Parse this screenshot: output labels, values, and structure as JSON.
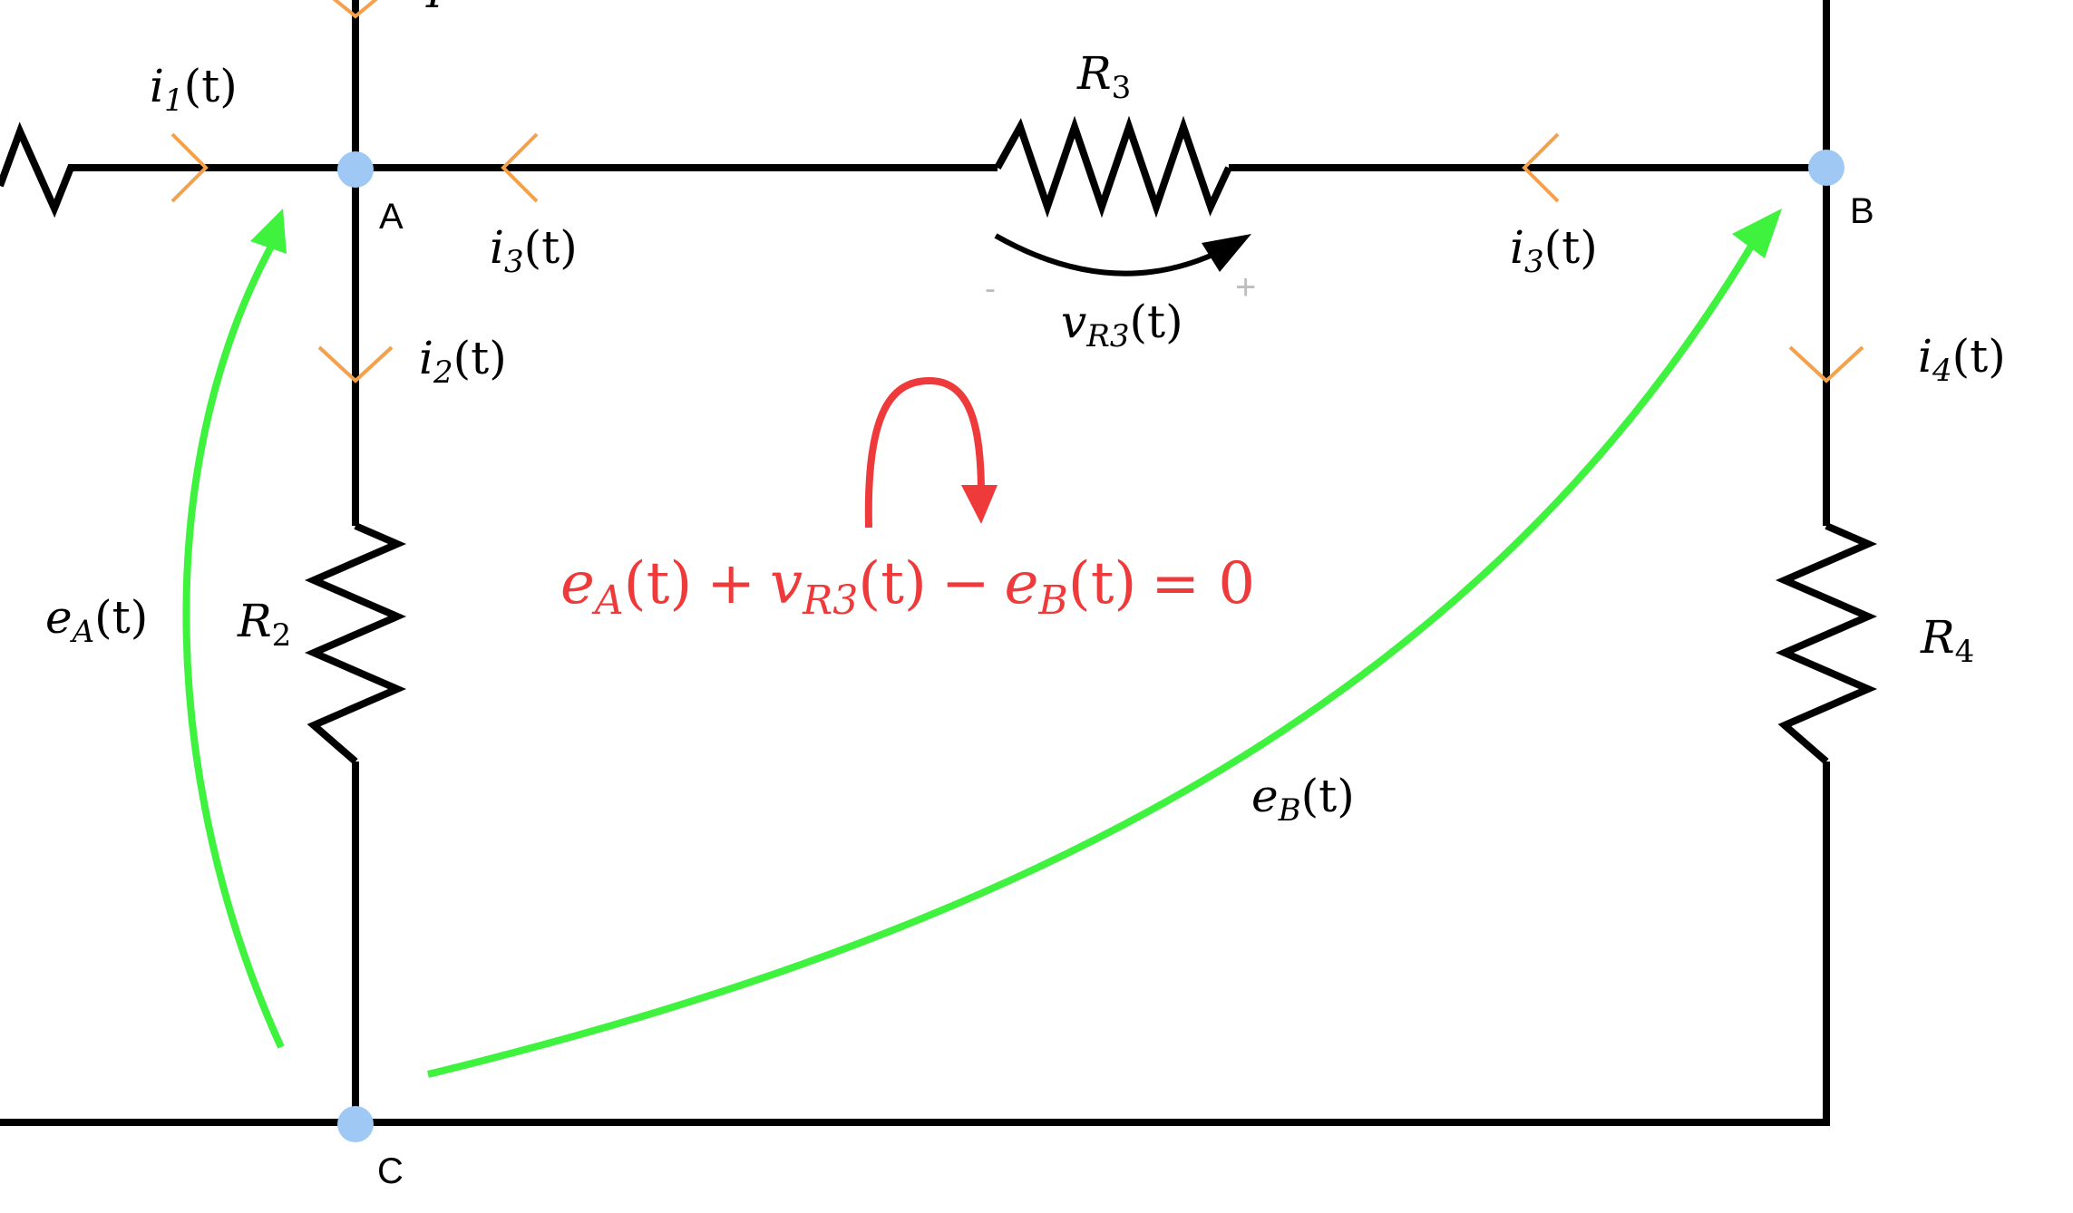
{
  "nodes": {
    "A": "A",
    "B": "B",
    "C": "C"
  },
  "resistors": {
    "R2": {
      "base": "R",
      "sub": "2"
    },
    "R3": {
      "base": "R",
      "sub": "3"
    },
    "R4": {
      "base": "R",
      "sub": "4"
    }
  },
  "currents": {
    "i1": {
      "base": "i",
      "sub": "1",
      "arg": "(t)"
    },
    "i2": {
      "base": "i",
      "sub": "2",
      "arg": "(t)"
    },
    "i3_left": {
      "base": "i",
      "sub": "3",
      "arg": "(t)"
    },
    "i3_right": {
      "base": "i",
      "sub": "3",
      "arg": "(t)"
    },
    "i4": {
      "base": "i",
      "sub": "4",
      "arg": "(t)"
    }
  },
  "voltages": {
    "vR3": {
      "base": "v",
      "sub": "R3",
      "arg": "(t)"
    },
    "eA": {
      "base": "e",
      "sub": "A",
      "arg": "(t)"
    },
    "eB": {
      "base": "e",
      "sub": "B",
      "arg": "(t)"
    }
  },
  "polarity": {
    "minus": "-",
    "plus": "+"
  },
  "equation": {
    "eA_base": "e",
    "eA_sub": "A",
    "eA_arg": "(t)",
    "plus": "+",
    "vR3_base": "v",
    "vR3_sub": "R3",
    "vR3_arg": "(t)",
    "minus": "−",
    "eB_base": "e",
    "eB_sub": "B",
    "eB_arg": "(t)",
    "equals": "= 0"
  },
  "colors": {
    "wire": "#000000",
    "node": "#9fc8f5",
    "current_arrow": "#f5a04a",
    "potential_arrow": "#3ef23e",
    "equation": "#ee3a3a"
  }
}
